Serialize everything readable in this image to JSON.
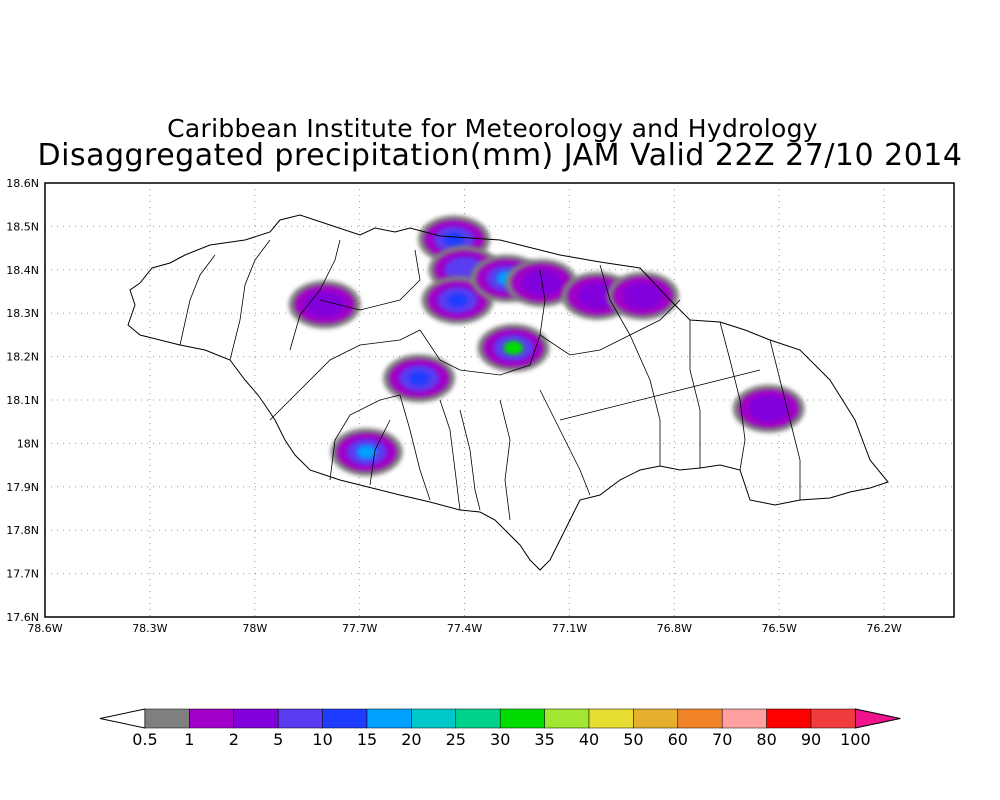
{
  "header": {
    "title": "Caribbean Institute for Meteorology and Hydrology",
    "subtitle": "Disaggregated precipitation(mm) JAM Valid 22Z 27/10 2014"
  },
  "map": {
    "lon_range": [
      -78.6,
      -76.0
    ],
    "lat_range": [
      17.6,
      18.6
    ],
    "grid": "dotted",
    "lon_ticks": [
      {
        "value": -78.6,
        "label": "78.6W"
      },
      {
        "value": -78.3,
        "label": "78.3W"
      },
      {
        "value": -78.0,
        "label": "78W"
      },
      {
        "value": -77.7,
        "label": "77.7W"
      },
      {
        "value": -77.4,
        "label": "77.4W"
      },
      {
        "value": -77.1,
        "label": "77.1W"
      },
      {
        "value": -76.8,
        "label": "76.8W"
      },
      {
        "value": -76.5,
        "label": "76.5W"
      },
      {
        "value": -76.2,
        "label": "76.2W"
      }
    ],
    "lat_ticks": [
      {
        "value": 17.6,
        "label": "17.6N"
      },
      {
        "value": 17.7,
        "label": "17.7N"
      },
      {
        "value": 17.8,
        "label": "17.8N"
      },
      {
        "value": 17.9,
        "label": "17.9N"
      },
      {
        "value": 18.0,
        "label": "18N"
      },
      {
        "value": 18.1,
        "label": "18.1N"
      },
      {
        "value": 18.2,
        "label": "18.2N"
      },
      {
        "value": 18.3,
        "label": "18.3N"
      },
      {
        "value": 18.4,
        "label": "18.4N"
      },
      {
        "value": 18.5,
        "label": "18.5N"
      },
      {
        "value": 18.6,
        "label": "18.6N"
      }
    ],
    "precip_cells": [
      {
        "lon": -77.43,
        "lat": 18.47,
        "mm": 10
      },
      {
        "lon": -77.4,
        "lat": 18.4,
        "mm": 5
      },
      {
        "lon": -77.42,
        "lat": 18.33,
        "mm": 10
      },
      {
        "lon": -77.28,
        "lat": 18.38,
        "mm": 15
      },
      {
        "lon": -77.26,
        "lat": 18.22,
        "mm": 30
      },
      {
        "lon": -77.18,
        "lat": 18.37,
        "mm": 2
      },
      {
        "lon": -77.02,
        "lat": 18.34,
        "mm": 2
      },
      {
        "lon": -76.89,
        "lat": 18.34,
        "mm": 2
      },
      {
        "lon": -77.8,
        "lat": 18.32,
        "mm": 2
      },
      {
        "lon": -77.53,
        "lat": 18.15,
        "mm": 10
      },
      {
        "lon": -77.68,
        "lat": 17.98,
        "mm": 15
      },
      {
        "lon": -76.53,
        "lat": 18.08,
        "mm": 2
      }
    ]
  },
  "colorbar": {
    "levels": [
      "0.5",
      "1",
      "2",
      "5",
      "10",
      "15",
      "20",
      "25",
      "30",
      "35",
      "40",
      "50",
      "60",
      "70",
      "80",
      "90",
      "100"
    ],
    "colors": [
      "#ffffff",
      "#7f7f7f",
      "#a000c8",
      "#8200dc",
      "#5a3cf0",
      "#1e3cff",
      "#00a0ff",
      "#00c8c8",
      "#00d28c",
      "#00dc00",
      "#a0e632",
      "#e6dc32",
      "#e6af2d",
      "#f08228",
      "#ffa0a0",
      "#ff0000",
      "#f03c3c",
      "#f0148c"
    ]
  }
}
